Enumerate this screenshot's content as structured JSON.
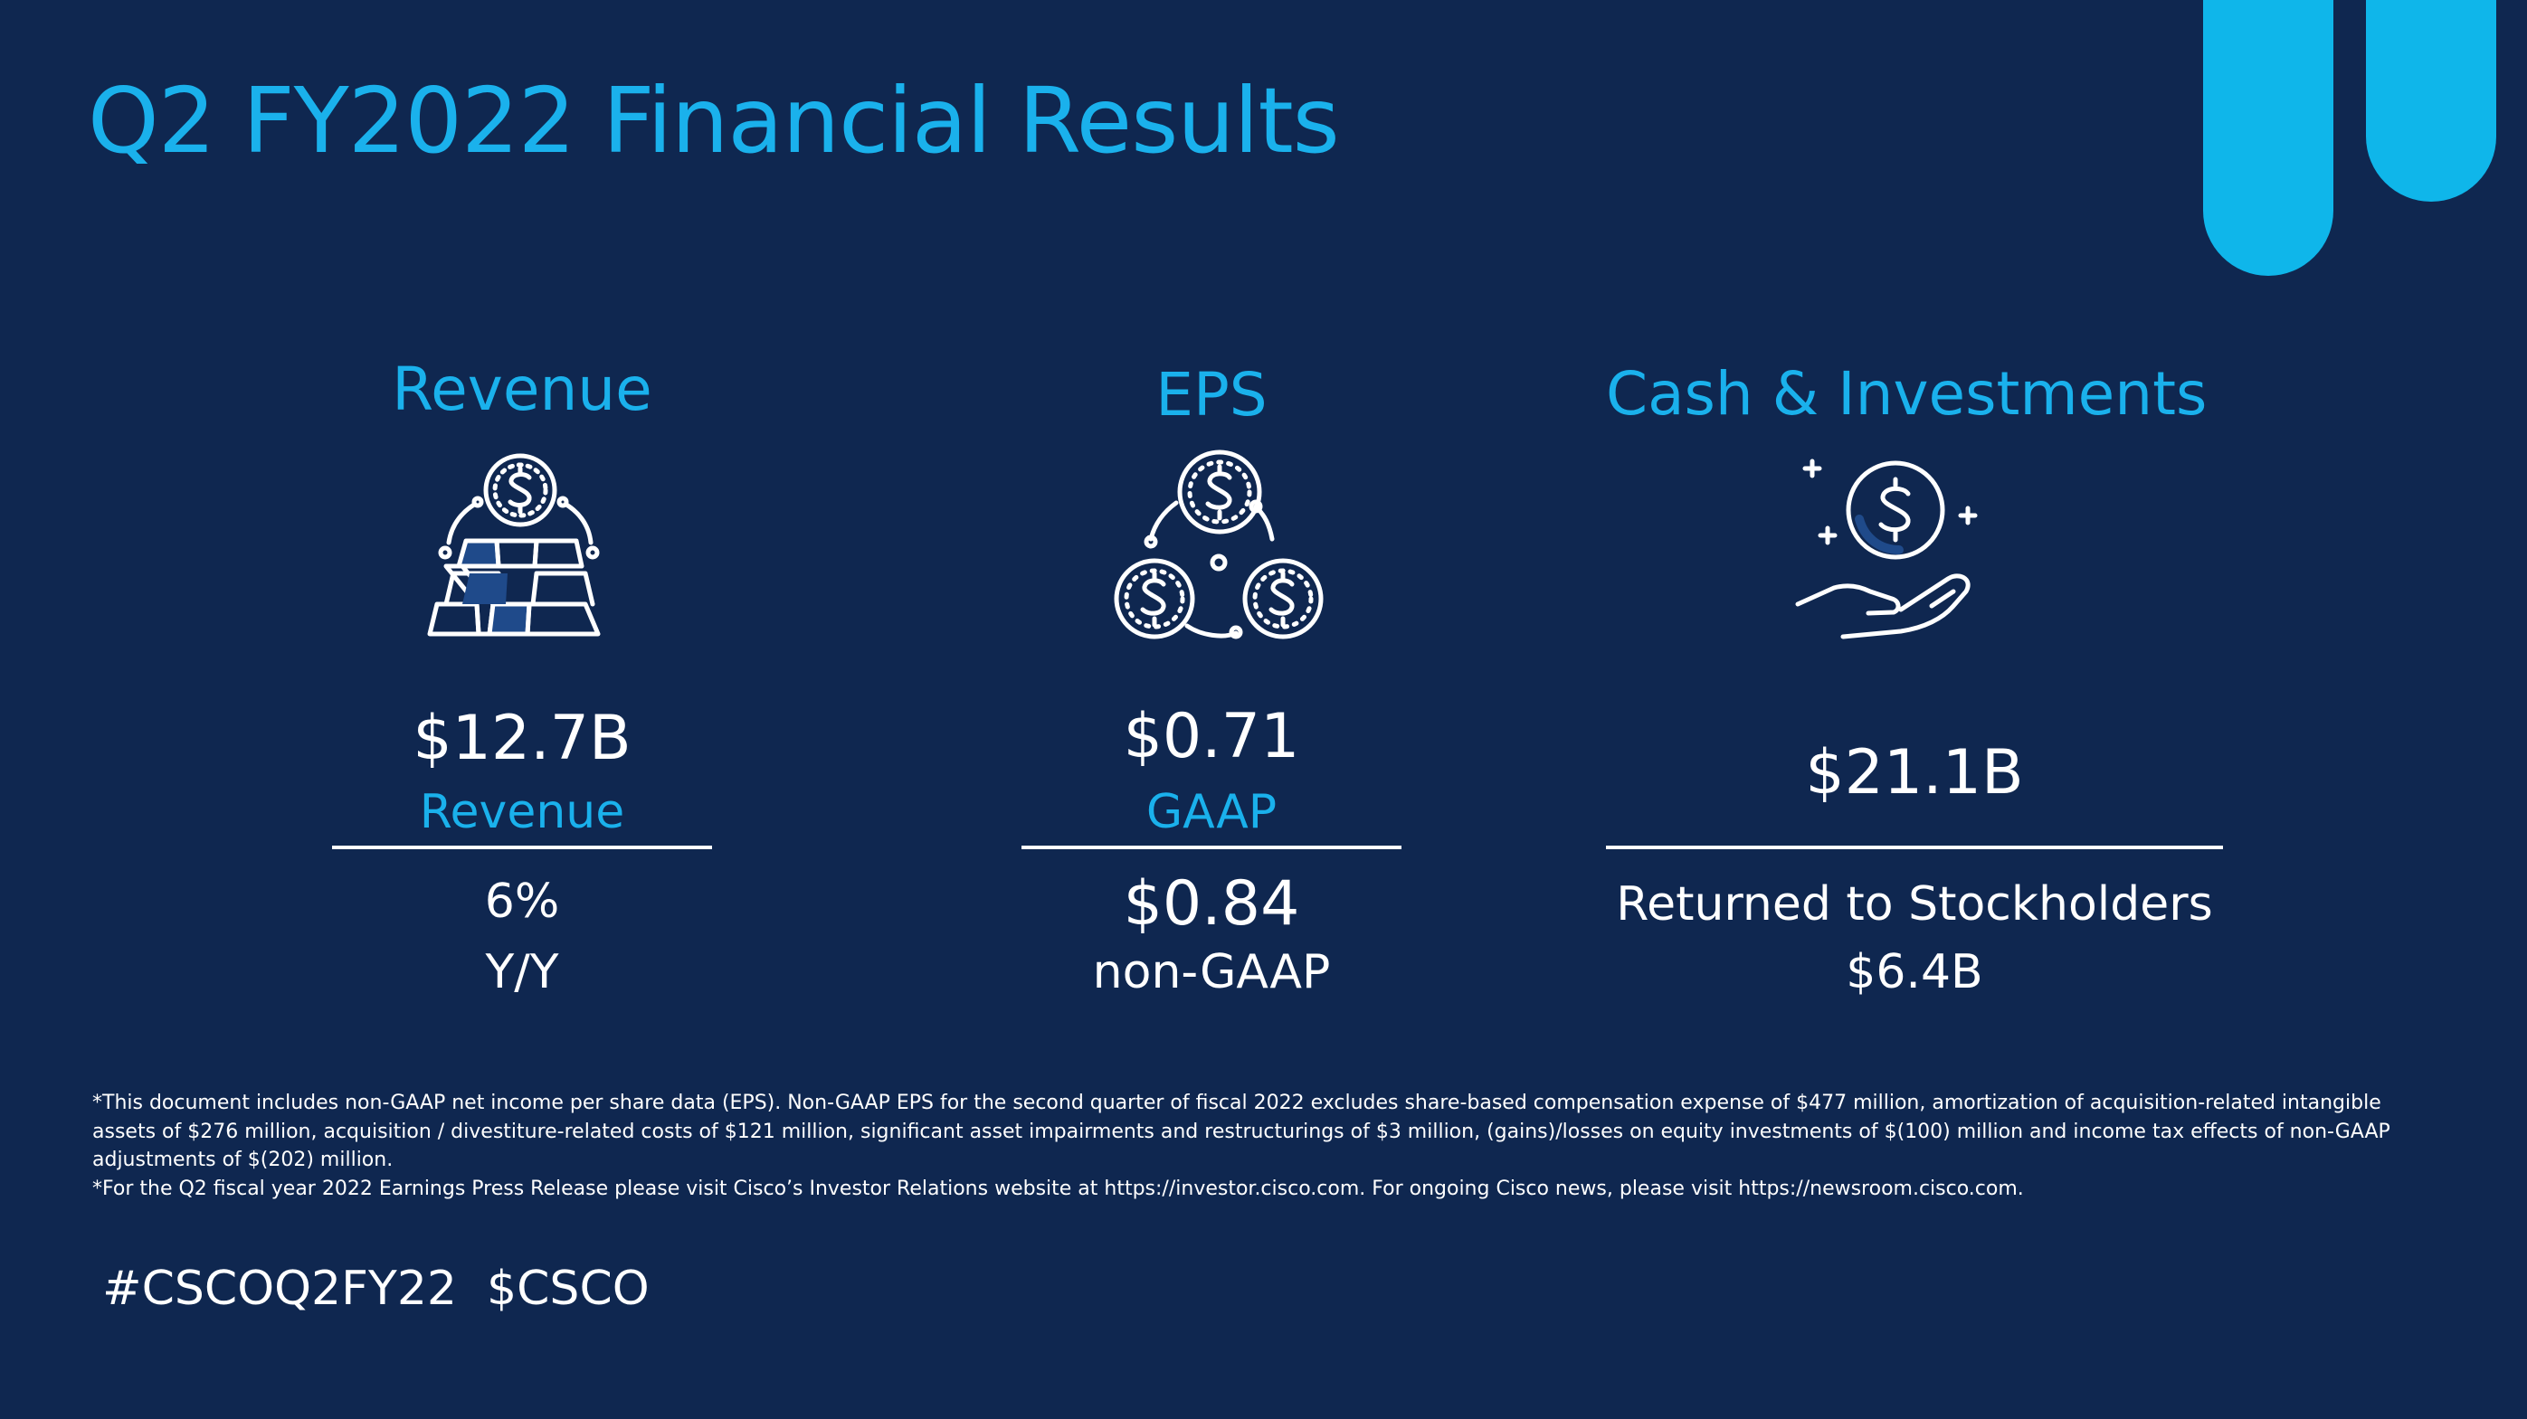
{
  "slide": {
    "title": "Q2 FY2022 Financial Results",
    "colors": {
      "background": "#0f2750",
      "accent": "#1ab1ec",
      "text": "#ffffff",
      "deco": "#0fb6ea"
    }
  },
  "revenue": {
    "heading": "Revenue",
    "icon": "gold-bars-with-coin-icon",
    "value": "$12.7B",
    "label": "Revenue",
    "growth": "6%",
    "growth_label": "Y/Y"
  },
  "eps": {
    "heading": "EPS",
    "icon": "three-coins-icon",
    "gaap_value": "$0.71",
    "gaap_label": "GAAP",
    "non_gaap_value": "$0.84",
    "non_gaap_label": "non-GAAP"
  },
  "cash": {
    "heading": "Cash & Investments",
    "icon": "hand-holding-coin-icon",
    "value": "$21.1B",
    "returned_label": "Returned to Stockholders",
    "returned_value": "$6.4B"
  },
  "footnotes": {
    "eps_note": "*This document includes non-GAAP net income per share data (EPS). Non-GAAP EPS for the second quarter of fiscal 2022 excludes share-based compensation expense of $477 million, amortization of acquisition-related intangible assets of $276 million, acquisition / divestiture-related costs of $121 million, significant asset impairments and restructurings of $3 million, (gains)/losses on equity investments of $(100) million and income tax effects of non-GAAP adjustments of $(202) million.",
    "press_note": "*For the Q2 fiscal year 2022 Earnings Press Release please visit Cisco’s Investor Relations website at https://investor.cisco.com. For ongoing Cisco news, please visit https://newsroom.cisco.com."
  },
  "hashtags": "#CSCOQ2FY22  $CSCO"
}
